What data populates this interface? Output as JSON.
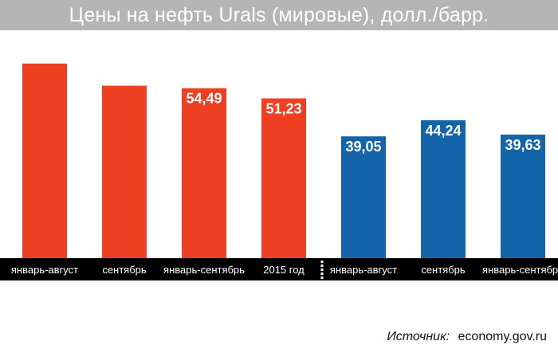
{
  "title": "Цены на нефть Urals (мировые), долл./барр.",
  "source": {
    "label": "Источник:",
    "value": "economy.gov.ru"
  },
  "colors": {
    "title_band": "#b5b5b5",
    "bar_red": "#ee3f23",
    "bar_blue": "#1364a8",
    "axis_band": "#000000"
  },
  "chart_data": {
    "type": "bar",
    "categories": [
      "январь-август",
      "сентябрь",
      "январь-сентябрь",
      "2015 год",
      "январь-август",
      "сентябрь",
      "январь-сентябрь"
    ],
    "values": [
      62.4,
      55.3,
      54.49,
      51.23,
      39.05,
      44.24,
      39.63
    ],
    "data_labels": [
      "",
      "",
      "54,49",
      "51,23",
      "39,05",
      "44,24",
      "39,63"
    ],
    "colors": [
      "#ee3f23",
      "#ee3f23",
      "#ee3f23",
      "#ee3f23",
      "#1364a8",
      "#1364a8",
      "#1364a8"
    ],
    "ylim": [
      0,
      70
    ],
    "separator_after_index": 3,
    "grid": false,
    "title": "Цены на нефть Urals (мировые), долл./барр.",
    "xlabel": "",
    "ylabel": ""
  }
}
